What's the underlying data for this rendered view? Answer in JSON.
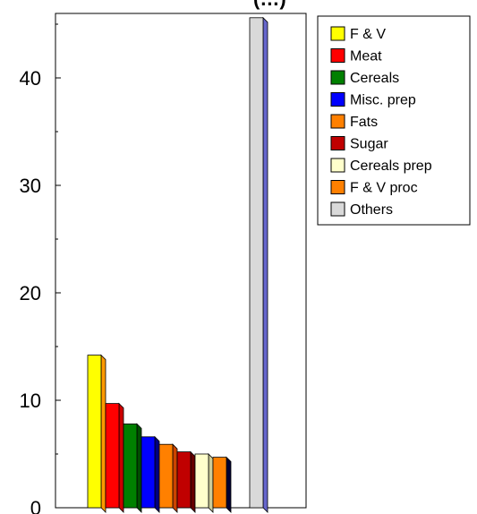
{
  "chart_data": {
    "type": "bar",
    "title": "(…)",
    "categories": [
      "F & V",
      "Meat",
      "Cereals",
      "Misc. prep",
      "Fats",
      "Sugar",
      "Cereals prep",
      "F & V proc",
      "Others"
    ],
    "values": [
      14.2,
      9.7,
      7.8,
      6.6,
      5.9,
      5.2,
      5.0,
      4.7,
      45.6
    ],
    "colors": [
      "#ffff00",
      "#ff0000",
      "#008000",
      "#0000ff",
      "#ff8000",
      "#c00000",
      "#ffffcc",
      "#ff8000",
      "#d9d9d9"
    ],
    "side_colors": [
      "#ff9900",
      "#cc0000",
      "#004d00",
      "#000080",
      "#cc4400",
      "#660000",
      "#cccc99",
      "#000033",
      "#6666cc"
    ],
    "yticks": [
      0,
      10,
      20,
      30,
      40
    ],
    "ylim": [
      0,
      46
    ],
    "legend_position": "right",
    "grid": false
  }
}
